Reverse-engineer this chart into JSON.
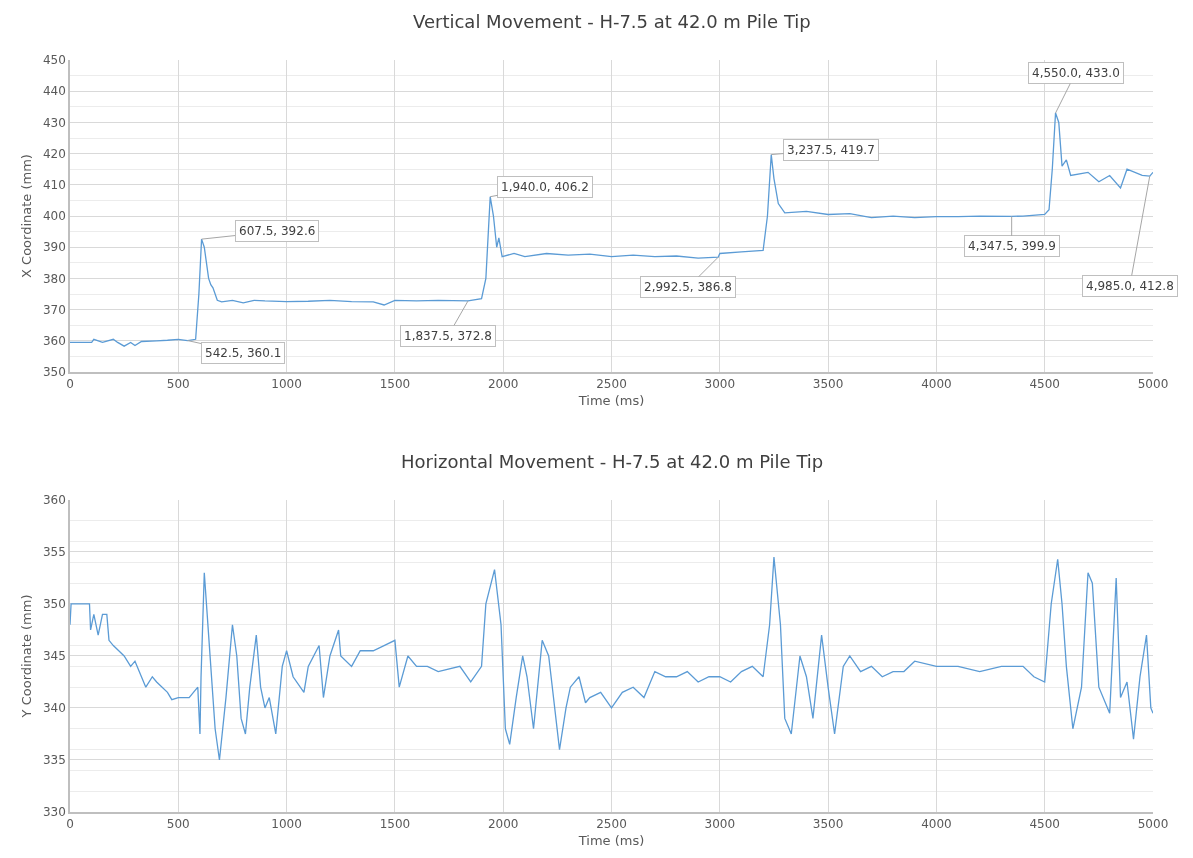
{
  "chart_data": [
    {
      "type": "line",
      "title": "Vertical Movement - H-7.5 at 42.0 m Pile Tip",
      "xlabel": "Time (ms)",
      "ylabel": "X Coordinate (mm)",
      "xlim": [
        0,
        5000
      ],
      "xticks": [
        0,
        500,
        1000,
        1500,
        2000,
        2500,
        3000,
        3500,
        4000,
        4500,
        5000
      ],
      "ylim": [
        350,
        450
      ],
      "yticks": [
        350,
        360,
        370,
        380,
        390,
        400,
        410,
        420,
        430,
        440,
        450
      ],
      "grid": true,
      "marker": "none",
      "line_style": "solid",
      "series": [
        {
          "color": "#5b9bd5",
          "x": [
            0,
            100,
            110,
            150,
            200,
            220,
            250,
            280,
            300,
            330,
            400,
            450,
            500,
            542.5,
            580,
            595,
            607.5,
            620,
            640,
            650,
            660,
            680,
            700,
            750,
            800,
            850,
            900,
            1000,
            1100,
            1200,
            1300,
            1400,
            1450,
            1500,
            1600,
            1700,
            1837.5,
            1900,
            1920,
            1940,
            1955,
            1970,
            1980,
            1995,
            2050,
            2100,
            2200,
            2300,
            2400,
            2500,
            2600,
            2700,
            2800,
            2900,
            2992.5,
            3000,
            3100,
            3200,
            3220,
            3237.5,
            3250,
            3270,
            3300,
            3400,
            3500,
            3600,
            3700,
            3800,
            3900,
            4000,
            4100,
            4200,
            4347.5,
            4400,
            4500,
            4520,
            4535,
            4550,
            4565,
            4580,
            4600,
            4620,
            4700,
            4750,
            4800,
            4850,
            4880,
            4950,
            4985,
            5000
          ],
          "values": [
            359.5,
            359.5,
            360.5,
            359.5,
            360.5,
            359.5,
            358.3,
            359.5,
            358.5,
            359.8,
            360,
            360.2,
            360.5,
            360.1,
            360.5,
            375,
            392.6,
            390,
            380,
            378,
            377,
            373,
            372.5,
            373,
            372.2,
            373,
            372.8,
            372.6,
            372.7,
            373,
            372.6,
            372.5,
            371.5,
            373,
            372.8,
            373,
            372.8,
            373.5,
            380,
            406.2,
            400,
            390,
            393,
            387,
            388,
            387,
            388,
            387.5,
            387.8,
            387,
            387.5,
            387,
            387.2,
            386.5,
            386.8,
            388,
            388.5,
            389,
            400,
            419.7,
            412,
            404,
            401,
            401.5,
            400.5,
            400.8,
            399.5,
            400,
            399.5,
            399.8,
            399.8,
            400,
            399.9,
            400,
            400.5,
            402,
            415,
            433,
            430,
            416,
            418,
            413,
            414,
            411,
            413,
            409,
            415,
            413,
            412.8,
            414
          ]
        }
      ],
      "annotations": [
        {
          "text": "542.5, 360.1",
          "x": 542.5,
          "y": 360.1
        },
        {
          "text": "607.5, 392.6",
          "x": 607.5,
          "y": 392.6
        },
        {
          "text": "1,837.5, 372.8",
          "x": 1837.5,
          "y": 372.8
        },
        {
          "text": "1,940.0, 406.2",
          "x": 1940,
          "y": 406.2
        },
        {
          "text": "2,992.5, 386.8",
          "x": 2992.5,
          "y": 386.8
        },
        {
          "text": "3,237.5, 419.7",
          "x": 3237.5,
          "y": 419.7
        },
        {
          "text": "4,347.5, 399.9",
          "x": 4347.5,
          "y": 399.9
        },
        {
          "text": "4,550.0, 433.0",
          "x": 4550,
          "y": 433.0
        },
        {
          "text": "4,985.0, 412.8",
          "x": 4985,
          "y": 412.8
        }
      ]
    },
    {
      "type": "line",
      "title": "Horizontal Movement - H-7.5 at 42.0 m Pile Tip",
      "xlabel": "Time (ms)",
      "ylabel": "Y Coordinate (mm)",
      "xlim": [
        0,
        5000
      ],
      "xticks": [
        0,
        500,
        1000,
        1500,
        2000,
        2500,
        3000,
        3500,
        4000,
        4500,
        5000
      ],
      "ylim": [
        330,
        360
      ],
      "yticks": [
        330,
        335,
        340,
        345,
        350,
        355,
        360
      ],
      "grid": true,
      "marker": "none",
      "line_style": "solid",
      "series": [
        {
          "color": "#5b9bd5",
          "x": [
            0,
            5,
            90,
            95,
            110,
            130,
            150,
            170,
            180,
            200,
            250,
            280,
            300,
            350,
            380,
            400,
            450,
            470,
            500,
            550,
            590,
            600,
            605,
            620,
            640,
            670,
            690,
            720,
            750,
            770,
            790,
            810,
            830,
            860,
            880,
            900,
            920,
            950,
            980,
            1000,
            1030,
            1080,
            1100,
            1150,
            1170,
            1200,
            1240,
            1250,
            1300,
            1340,
            1400,
            1450,
            1500,
            1520,
            1560,
            1600,
            1650,
            1700,
            1800,
            1850,
            1900,
            1920,
            1960,
            1990,
            2000,
            2010,
            2030,
            2060,
            2090,
            2110,
            2140,
            2180,
            2210,
            2260,
            2290,
            2310,
            2350,
            2380,
            2400,
            2450,
            2500,
            2550,
            2600,
            2650,
            2700,
            2750,
            2800,
            2850,
            2900,
            2950,
            3000,
            3050,
            3100,
            3150,
            3200,
            3230,
            3250,
            3280,
            3300,
            3330,
            3370,
            3400,
            3430,
            3470,
            3500,
            3530,
            3570,
            3600,
            3650,
            3700,
            3750,
            3800,
            3850,
            3900,
            4000,
            4100,
            4200,
            4300,
            4400,
            4450,
            4500,
            4530,
            4560,
            4580,
            4600,
            4630,
            4670,
            4700,
            4720,
            4750,
            4800,
            4830,
            4850,
            4880,
            4910,
            4940,
            4970,
            4990,
            5000
          ],
          "values": [
            348,
            350,
            350,
            347.5,
            349,
            347,
            349,
            349,
            346.5,
            346,
            345,
            344,
            344.5,
            342,
            343,
            342.5,
            341.5,
            340.8,
            341,
            341,
            342,
            337.5,
            343,
            353,
            347,
            338,
            335,
            341,
            348,
            345,
            339,
            337.5,
            342,
            347,
            342,
            340,
            341,
            337.5,
            344,
            345.5,
            343,
            341.5,
            344,
            346,
            341,
            345,
            347.5,
            345,
            344,
            345.5,
            345.5,
            346,
            346.5,
            342,
            345,
            344,
            344,
            343.5,
            344,
            342.5,
            344,
            350,
            353.3,
            348,
            343,
            338,
            336.5,
            341,
            345,
            343,
            338,
            346.5,
            345,
            336,
            340,
            342,
            343,
            340.5,
            341,
            341.5,
            340,
            341.5,
            342,
            341,
            343.5,
            343,
            343,
            343.5,
            342.5,
            343,
            343,
            342.5,
            343.5,
            344,
            343,
            348,
            354.5,
            348,
            339,
            337.5,
            345,
            343,
            339,
            347,
            342,
            337.5,
            344,
            345,
            343.5,
            344,
            343,
            343.5,
            343.5,
            344.5,
            344,
            344,
            343.5,
            344,
            344,
            343,
            342.5,
            350,
            354.3,
            350,
            344,
            338,
            342,
            353,
            352,
            342,
            339.5,
            352.5,
            341,
            342.5,
            337,
            343,
            347,
            340,
            339.5
          ]
        }
      ]
    }
  ]
}
